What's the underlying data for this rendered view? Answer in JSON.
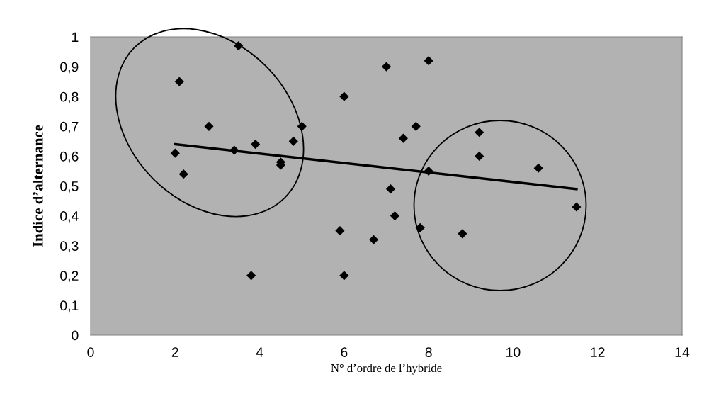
{
  "chart_data": {
    "type": "scatter",
    "xlabel": "N° d’ordre de l’hybride",
    "ylabel": "Indice d’alternance",
    "x": [
      2.0,
      2.1,
      2.2,
      2.8,
      3.4,
      3.5,
      3.8,
      3.9,
      4.5,
      4.5,
      4.8,
      5.0,
      5.9,
      6.0,
      6.0,
      6.7,
      7.0,
      7.1,
      7.2,
      7.4,
      7.7,
      7.8,
      8.0,
      8.0,
      8.8,
      9.2,
      9.2,
      10.6,
      11.5
    ],
    "series": [
      {
        "color": "#000000",
        "marker": "diamond",
        "values": [
          0.61,
          0.85,
          0.54,
          0.7,
          0.62,
          0.97,
          0.2,
          0.64,
          0.58,
          0.57,
          0.65,
          0.7,
          0.35,
          0.8,
          0.2,
          0.32,
          0.9,
          0.49,
          0.4,
          0.66,
          0.7,
          0.36,
          0.92,
          0.55,
          0.34,
          0.68,
          0.6,
          0.56,
          0.43
        ]
      },
      {
        "type": "line",
        "color": "#000000",
        "marker": "none",
        "line_style": "solid",
        "x": [
          2.0,
          11.5
        ],
        "values": [
          0.64,
          0.49
        ]
      }
    ],
    "xlim": [
      0,
      14
    ],
    "xticks": [
      0,
      2,
      4,
      6,
      8,
      10,
      12,
      14
    ],
    "ylim": [
      0,
      1
    ],
    "yticks": [
      0,
      {
        "value": 0.1,
        "label": "0,1"
      },
      {
        "value": 0.2,
        "label": "0,2"
      },
      {
        "value": 0.3,
        "label": "0,3"
      },
      {
        "value": 0.4,
        "label": "0,4"
      },
      {
        "value": 0.5,
        "label": "0,5"
      },
      {
        "value": 0.6,
        "label": "0,6"
      },
      {
        "value": 0.7,
        "label": "0,7"
      },
      {
        "value": 0.8,
        "label": "0,8"
      },
      {
        "value": 0.9,
        "label": "0,9"
      },
      1
    ],
    "legend": false
  }
}
